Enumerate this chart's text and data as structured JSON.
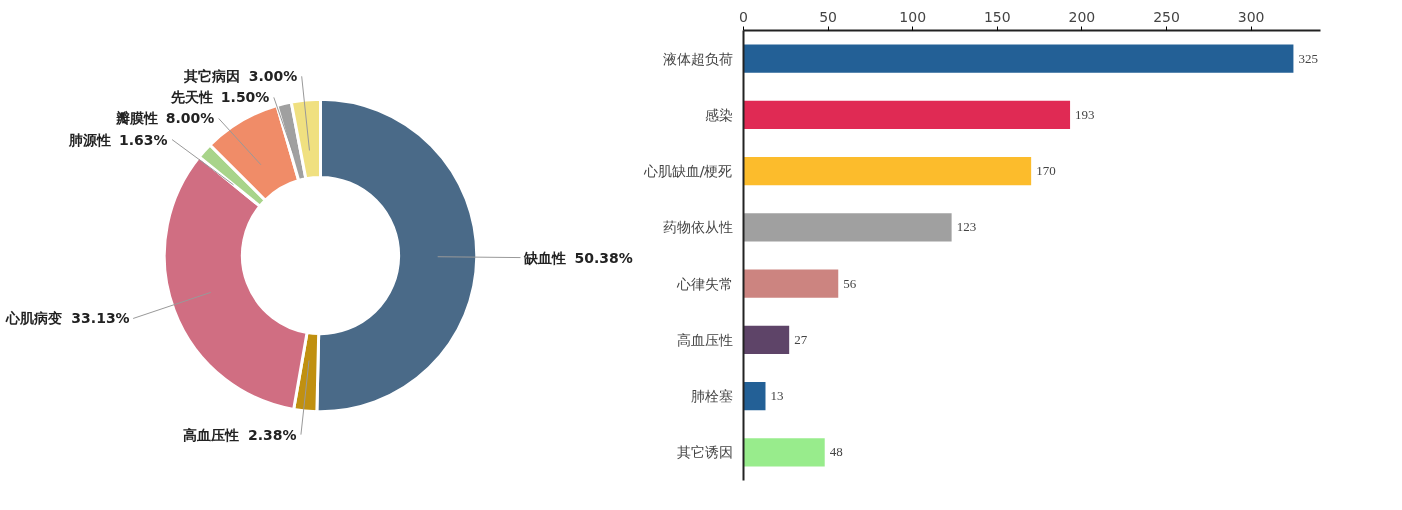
{
  "chart_data": [
    {
      "type": "donut",
      "categories": [
        "缺血性",
        "高血压性",
        "心肌病变",
        "肺源性",
        "瓣膜性",
        "先天性",
        "其它病因"
      ],
      "values": [
        50.38,
        2.38,
        33.13,
        1.63,
        8.0,
        1.5,
        3.0
      ],
      "colors": [
        "#4a6a88",
        "#c09010",
        "#d06e82",
        "#a8d48a",
        "#f08c68",
        "#a0a0a0",
        "#f0e080"
      ],
      "value_labels": [
        "50.38%",
        "2.38%",
        "33.13%",
        "1.63%",
        "8.00%",
        "1.50%",
        "3.00%"
      ],
      "legend": false
    },
    {
      "type": "bar",
      "orientation": "horizontal",
      "categories": [
        "液体超负荷",
        "感染",
        "心肌缺血/梗死",
        "药物依从性",
        "心律失常",
        "高血压性",
        "肺栓塞",
        "其它诱因"
      ],
      "values": [
        325,
        193,
        170,
        123,
        56,
        27,
        13,
        48
      ],
      "colors": [
        "#236096",
        "#e02a54",
        "#fcbc2c",
        "#a0a0a0",
        "#cc8480",
        "#5e4468",
        "#236096",
        "#98ec8c"
      ],
      "xlim": [
        0,
        341
      ],
      "xticks": [
        0,
        50,
        100,
        150,
        200,
        250,
        300
      ],
      "data_labels": true,
      "grid": false,
      "legend": false
    }
  ]
}
